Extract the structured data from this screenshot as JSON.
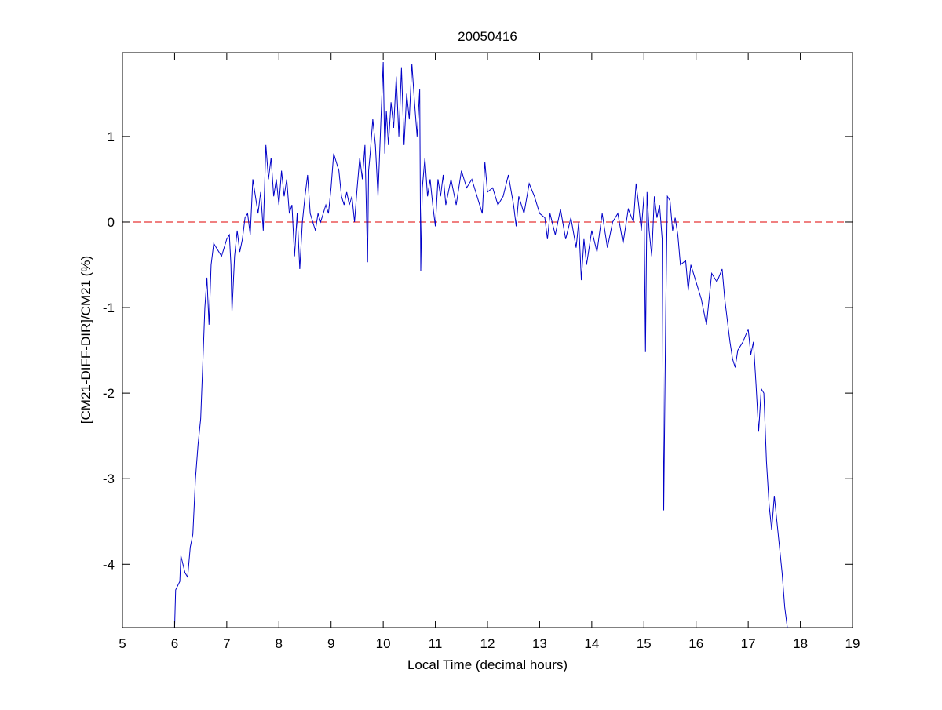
{
  "chart_data": {
    "type": "line",
    "title": "20050416",
    "x_label": "Local Time (decimal hours)",
    "y_label": "[CM21-DIFF-DIR]/CM21 (%)",
    "x": [
      6.0,
      6.02,
      6.1,
      6.12,
      6.2,
      6.25,
      6.3,
      6.35,
      6.4,
      6.45,
      6.5,
      6.55,
      6.58,
      6.62,
      6.66,
      6.7,
      6.75,
      6.8,
      6.85,
      6.9,
      6.95,
      7.0,
      7.05,
      7.08,
      7.1,
      7.15,
      7.2,
      7.25,
      7.3,
      7.35,
      7.4,
      7.45,
      7.5,
      7.55,
      7.6,
      7.65,
      7.7,
      7.75,
      7.8,
      7.85,
      7.9,
      7.95,
      8.0,
      8.05,
      8.1,
      8.15,
      8.2,
      8.25,
      8.3,
      8.35,
      8.4,
      8.45,
      8.5,
      8.55,
      8.6,
      8.65,
      8.7,
      8.75,
      8.8,
      8.85,
      8.9,
      8.95,
      9.0,
      9.05,
      9.1,
      9.15,
      9.2,
      9.25,
      9.3,
      9.35,
      9.4,
      9.45,
      9.5,
      9.55,
      9.6,
      9.65,
      9.7,
      9.72,
      9.75,
      9.8,
      9.85,
      9.9,
      9.95,
      10.0,
      10.03,
      10.06,
      10.1,
      10.15,
      10.2,
      10.25,
      10.3,
      10.35,
      10.4,
      10.45,
      10.5,
      10.55,
      10.6,
      10.65,
      10.7,
      10.72,
      10.75,
      10.8,
      10.85,
      10.9,
      10.95,
      11.0,
      11.05,
      11.1,
      11.15,
      11.2,
      11.3,
      11.4,
      11.5,
      11.6,
      11.7,
      11.8,
      11.9,
      11.95,
      12.0,
      12.1,
      12.2,
      12.3,
      12.4,
      12.5,
      12.55,
      12.6,
      12.7,
      12.8,
      12.9,
      13.0,
      13.1,
      13.15,
      13.2,
      13.3,
      13.4,
      13.5,
      13.6,
      13.7,
      13.75,
      13.8,
      13.85,
      13.9,
      14.0,
      14.1,
      14.2,
      14.3,
      14.4,
      14.5,
      14.6,
      14.7,
      14.8,
      14.85,
      14.9,
      14.95,
      15.0,
      15.03,
      15.06,
      15.1,
      15.15,
      15.2,
      15.25,
      15.3,
      15.35,
      15.38,
      15.42,
      15.45,
      15.5,
      15.55,
      15.6,
      15.65,
      15.7,
      15.8,
      15.85,
      15.9,
      16.0,
      16.1,
      16.2,
      16.25,
      16.3,
      16.4,
      16.5,
      16.55,
      16.6,
      16.65,
      16.7,
      16.75,
      16.8,
      16.9,
      17.0,
      17.05,
      17.1,
      17.15,
      17.2,
      17.25,
      17.3,
      17.35,
      17.4,
      17.45,
      17.5,
      17.55,
      17.6,
      17.65,
      17.7,
      17.75
    ],
    "series": [
      {
        "color": "#0000c8",
        "values": [
          -4.74,
          -4.3,
          -4.2,
          -3.9,
          -4.1,
          -4.15,
          -3.8,
          -3.65,
          -3.0,
          -2.6,
          -2.3,
          -1.5,
          -1.0,
          -0.65,
          -1.2,
          -0.5,
          -0.25,
          -0.3,
          -0.35,
          -0.4,
          -0.3,
          -0.2,
          -0.15,
          -0.5,
          -1.05,
          -0.4,
          -0.1,
          -0.35,
          -0.2,
          0.05,
          0.1,
          -0.15,
          0.5,
          0.3,
          0.1,
          0.35,
          -0.1,
          0.9,
          0.5,
          0.75,
          0.3,
          0.5,
          0.2,
          0.6,
          0.3,
          0.5,
          0.1,
          0.2,
          -0.4,
          0.1,
          -0.55,
          0.0,
          0.3,
          0.55,
          0.1,
          0.0,
          -0.1,
          0.1,
          0.0,
          0.1,
          0.2,
          0.1,
          0.4,
          0.8,
          0.7,
          0.6,
          0.3,
          0.2,
          0.35,
          0.2,
          0.3,
          0.0,
          0.4,
          0.75,
          0.5,
          0.9,
          -0.47,
          0.6,
          0.8,
          1.2,
          0.9,
          0.3,
          1.1,
          1.87,
          0.8,
          1.3,
          0.9,
          1.4,
          1.1,
          1.7,
          1.0,
          1.8,
          0.9,
          1.5,
          1.2,
          1.85,
          1.4,
          1.0,
          1.55,
          -0.57,
          0.4,
          0.75,
          0.3,
          0.5,
          0.2,
          -0.05,
          0.5,
          0.3,
          0.55,
          0.2,
          0.5,
          0.2,
          0.6,
          0.4,
          0.5,
          0.3,
          0.1,
          0.7,
          0.35,
          0.4,
          0.2,
          0.3,
          0.55,
          0.2,
          -0.05,
          0.3,
          0.1,
          0.45,
          0.3,
          0.1,
          0.05,
          -0.2,
          0.1,
          -0.15,
          0.15,
          -0.2,
          0.05,
          -0.3,
          0.0,
          -0.68,
          -0.2,
          -0.5,
          -0.1,
          -0.35,
          0.1,
          -0.3,
          0.0,
          0.1,
          -0.25,
          0.15,
          0.0,
          0.45,
          0.2,
          -0.1,
          0.3,
          -1.52,
          0.35,
          -0.1,
          -0.4,
          0.3,
          0.05,
          0.2,
          -0.2,
          -3.37,
          -1.0,
          0.3,
          0.25,
          -0.1,
          0.05,
          -0.15,
          -0.5,
          -0.45,
          -0.8,
          -0.5,
          -0.7,
          -0.9,
          -1.2,
          -0.9,
          -0.6,
          -0.7,
          -0.55,
          -0.9,
          -1.15,
          -1.4,
          -1.6,
          -1.7,
          -1.5,
          -1.4,
          -1.25,
          -1.55,
          -1.4,
          -1.9,
          -2.45,
          -1.95,
          -2.0,
          -2.8,
          -3.3,
          -3.6,
          -3.2,
          -3.5,
          -3.8,
          -4.1,
          -4.5,
          -4.74
        ]
      }
    ],
    "hline": {
      "value": 0,
      "color": "#e00000"
    },
    "xlim": [
      5,
      19
    ],
    "xticks": [
      5,
      6,
      7,
      8,
      9,
      10,
      11,
      12,
      13,
      14,
      15,
      16,
      17,
      18,
      19
    ],
    "ylim": [
      -4.74,
      1.98
    ],
    "yticks": [
      -4,
      -3,
      -2,
      -1,
      0,
      1
    ]
  }
}
